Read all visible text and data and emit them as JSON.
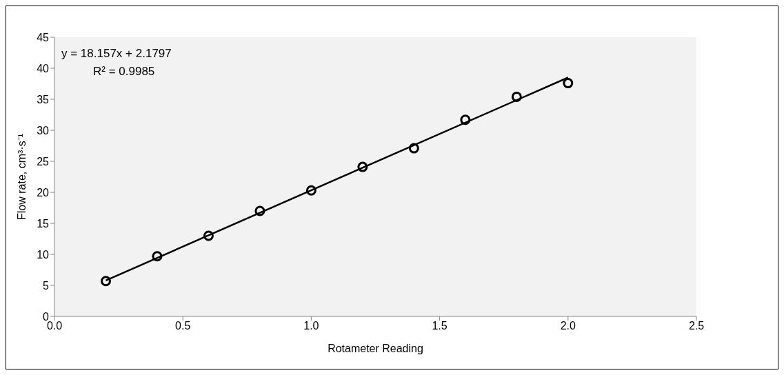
{
  "chart_data": {
    "type": "scatter",
    "xlabel": "Rotameter Reading",
    "ylabel": "Flow rate, cm³·s⁻¹",
    "annotations": [
      "y = 18.157x + 2.1797",
      "R² = 0.9985"
    ],
    "series": [
      {
        "marker": "circle",
        "color": "#000000",
        "x": [
          0.2,
          0.4,
          0.6,
          0.8,
          1.0,
          1.2,
          1.4,
          1.6,
          1.8,
          2.0
        ],
        "values": [
          5.7,
          9.7,
          13.0,
          17.0,
          20.3,
          24.1,
          27.1,
          31.7,
          35.4,
          37.6
        ]
      },
      {
        "type": "line",
        "color": "#000000",
        "x": [
          0.2,
          2.0
        ],
        "values": [
          5.8,
          38.5
        ]
      }
    ],
    "xlim": [
      0,
      2.5
    ],
    "xticks": [
      {
        "value": 0,
        "label": "0.0"
      },
      {
        "value": 0.5,
        "label": "0.5"
      },
      {
        "value": 1,
        "label": "1.0"
      },
      {
        "value": 1.5,
        "label": "1.5"
      },
      {
        "value": 2,
        "label": "2.0"
      },
      {
        "value": 2.5,
        "label": "2.5"
      }
    ],
    "ylim": [
      0,
      45
    ],
    "yticks": [
      0,
      5,
      10,
      15,
      20,
      25,
      30,
      35,
      40,
      45
    ]
  }
}
